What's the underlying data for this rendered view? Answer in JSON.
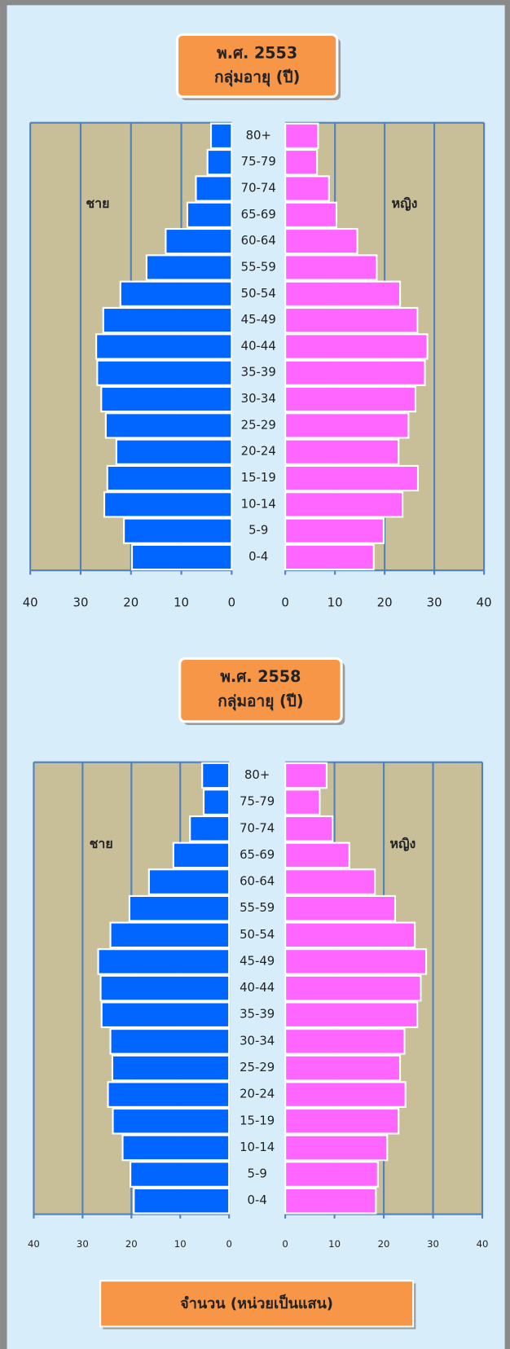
{
  "chart_data": [
    {
      "type": "bar",
      "title": "พ.ศ. 2553",
      "subtitle": "กลุ่มอายุ (ปี)",
      "categories": [
        "80+",
        "75-79",
        "70-74",
        "65-69",
        "60-64",
        "55-59",
        "50-54",
        "45-49",
        "40-44",
        "35-39",
        "30-34",
        "25-29",
        "20-24",
        "15-19",
        "10-14",
        "5-9",
        "0-4"
      ],
      "series": [
        {
          "name": "ชาย",
          "color": "#0066ff",
          "values": [
            4.1,
            4.8,
            7.1,
            8.8,
            13.1,
            16.9,
            22.1,
            25.5,
            26.9,
            26.7,
            25.9,
            25.0,
            22.9,
            24.7,
            25.3,
            21.4,
            19.8
          ]
        },
        {
          "name": "หญิง",
          "color": "#ff66ff",
          "values": [
            6.6,
            6.4,
            8.8,
            10.3,
            14.5,
            18.4,
            23.1,
            26.6,
            28.6,
            28.1,
            26.2,
            24.8,
            22.8,
            26.7,
            23.6,
            19.8,
            17.8
          ]
        }
      ],
      "xlim": [
        0,
        40
      ],
      "xticks": [
        0,
        10,
        20,
        30,
        40
      ],
      "grid": true
    },
    {
      "type": "bar",
      "title": "พ.ศ. 2558",
      "subtitle": "กลุ่มอายุ (ปี)",
      "categories": [
        "80+",
        "75-79",
        "70-74",
        "65-69",
        "60-64",
        "55-59",
        "50-54",
        "45-49",
        "40-44",
        "35-39",
        "30-34",
        "25-29",
        "20-24",
        "15-19",
        "10-14",
        "5-9",
        "0-4"
      ],
      "series": [
        {
          "name": "ชาย",
          "color": "#0066ff",
          "values": [
            5.5,
            5.2,
            8.0,
            11.4,
            16.4,
            20.4,
            24.3,
            26.8,
            26.3,
            26.1,
            24.3,
            23.9,
            24.8,
            23.8,
            21.8,
            20.2,
            19.5
          ]
        },
        {
          "name": "หญิง",
          "color": "#ff66ff",
          "values": [
            8.4,
            7.0,
            9.6,
            13.0,
            18.2,
            22.3,
            26.3,
            28.6,
            27.5,
            26.8,
            24.2,
            23.3,
            24.4,
            23.0,
            20.7,
            18.8,
            18.4
          ]
        }
      ],
      "xlim": [
        0,
        40
      ],
      "xticks": [
        0,
        10,
        20,
        30,
        40
      ],
      "grid": true
    }
  ],
  "footer_label": "จำนวน (หน่วยเป็นแสน)"
}
